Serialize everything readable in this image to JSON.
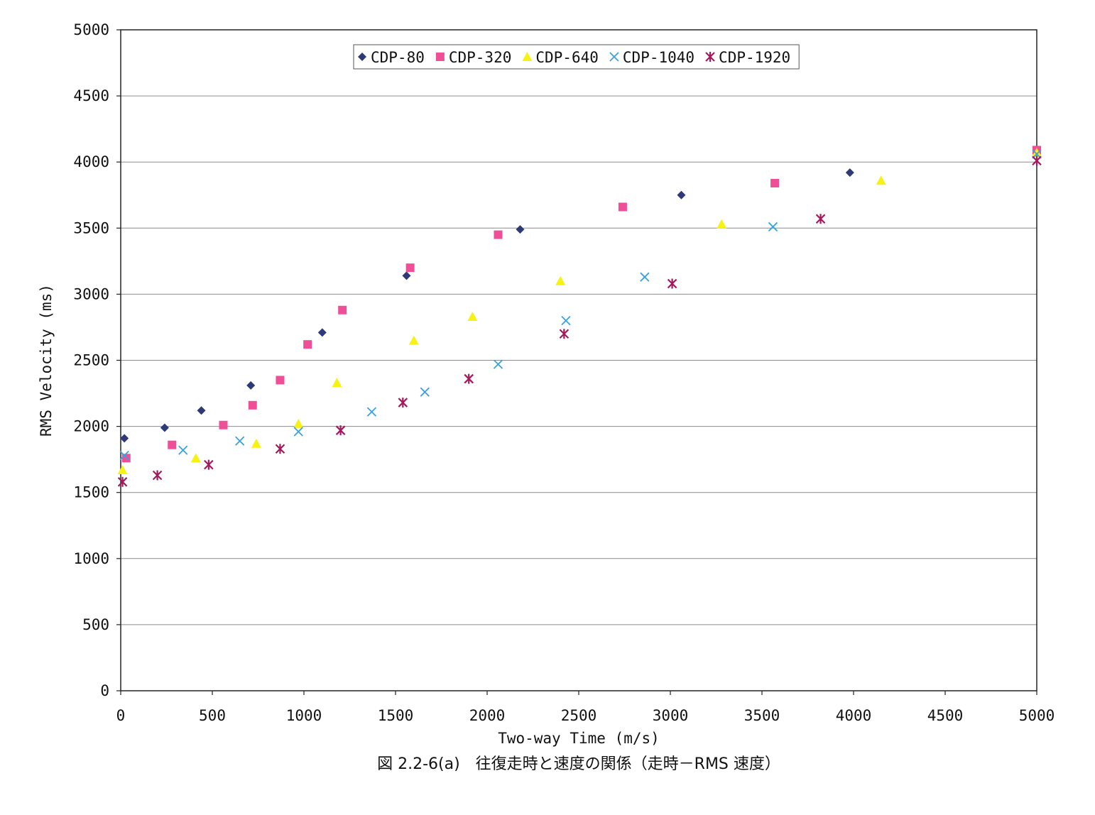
{
  "chart_data": {
    "type": "scatter",
    "xlabel": "Two-way Time (m/s)",
    "ylabel": "RMS Velocity (ms)",
    "caption": "図 2.2-6(a)　往復走時と速度の関係（走時－RMS 速度）",
    "xlim": [
      0,
      5000
    ],
    "ylim": [
      0,
      5000
    ],
    "xticks": [
      0,
      500,
      1000,
      1500,
      2000,
      2500,
      3000,
      3500,
      4000,
      4500,
      5000
    ],
    "yticks": [
      0,
      500,
      1000,
      1500,
      2000,
      2500,
      3000,
      3500,
      4000,
      4500,
      5000
    ],
    "grid": "horizontal",
    "legend_position": "top-center",
    "series": [
      {
        "name": "CDP-80",
        "marker": "diamond",
        "color": "#2e3a78",
        "points": [
          [
            20,
            1910
          ],
          [
            240,
            1990
          ],
          [
            440,
            2120
          ],
          [
            710,
            2310
          ],
          [
            1100,
            2710
          ],
          [
            1560,
            3140
          ],
          [
            2180,
            3490
          ],
          [
            3060,
            3750
          ],
          [
            3980,
            3920
          ],
          [
            5000,
            4070
          ]
        ]
      },
      {
        "name": "CDP-320",
        "marker": "square",
        "color": "#ee4f97",
        "points": [
          [
            30,
            1760
          ],
          [
            280,
            1860
          ],
          [
            560,
            2010
          ],
          [
            720,
            2160
          ],
          [
            870,
            2350
          ],
          [
            1020,
            2620
          ],
          [
            1210,
            2880
          ],
          [
            1580,
            3200
          ],
          [
            2060,
            3450
          ],
          [
            2740,
            3660
          ],
          [
            3570,
            3840
          ],
          [
            5000,
            4090
          ]
        ]
      },
      {
        "name": "CDP-640",
        "marker": "triangle",
        "color": "#f5f214",
        "points": [
          [
            10,
            1670
          ],
          [
            410,
            1760
          ],
          [
            740,
            1870
          ],
          [
            970,
            2020
          ],
          [
            1180,
            2330
          ],
          [
            1600,
            2650
          ],
          [
            1920,
            2830
          ],
          [
            2400,
            3100
          ],
          [
            3280,
            3530
          ],
          [
            4150,
            3860
          ],
          [
            5000,
            4070
          ]
        ]
      },
      {
        "name": "CDP-1040",
        "marker": "x",
        "color": "#3ba2dc",
        "points": [
          [
            20,
            1780
          ],
          [
            340,
            1820
          ],
          [
            650,
            1890
          ],
          [
            970,
            1960
          ],
          [
            1370,
            2110
          ],
          [
            1660,
            2260
          ],
          [
            2060,
            2470
          ],
          [
            2430,
            2800
          ],
          [
            2860,
            3130
          ],
          [
            3560,
            3510
          ],
          [
            5000,
            4060
          ]
        ]
      },
      {
        "name": "CDP-1920",
        "marker": "asterisk",
        "color": "#a3195b",
        "points": [
          [
            10,
            1580
          ],
          [
            200,
            1630
          ],
          [
            480,
            1710
          ],
          [
            870,
            1830
          ],
          [
            1200,
            1970
          ],
          [
            1540,
            2180
          ],
          [
            1900,
            2360
          ],
          [
            2420,
            2700
          ],
          [
            3010,
            3080
          ],
          [
            3820,
            3570
          ],
          [
            5000,
            4010
          ]
        ]
      }
    ]
  }
}
